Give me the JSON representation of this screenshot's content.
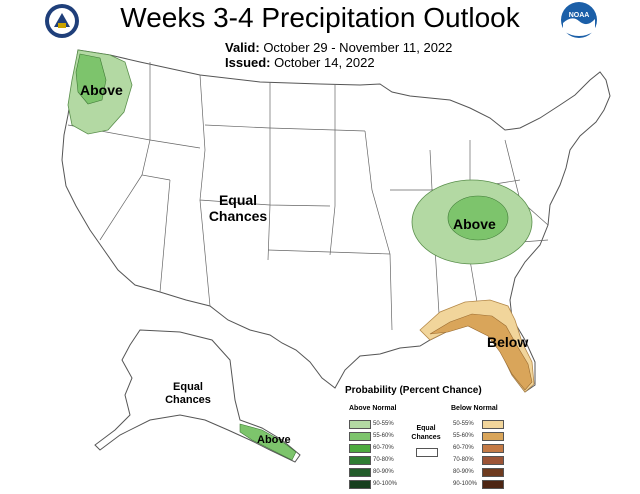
{
  "header": {
    "title": "Weeks 3-4 Precipitation Outlook",
    "valid_label": "Valid:",
    "valid_value": "October 29 - November 11, 2022",
    "issued_label": "Issued:",
    "issued_value": "October 14, 2022"
  },
  "logos": {
    "left": "department-of-commerce-seal",
    "right": "noaa-logo",
    "right_text": "NOAA"
  },
  "map_labels": {
    "northwest": "Above",
    "central": [
      "Equal",
      "Chances"
    ],
    "ohio_valley": "Above",
    "southeast": "Below",
    "alaska_central": [
      "Equal",
      "Chances"
    ],
    "alaska_southeast": "Above"
  },
  "legend": {
    "title": "Probability (Percent Chance)",
    "above_header": "Above Normal",
    "below_header": "Below Normal",
    "equal_label": [
      "Equal",
      "Chances"
    ],
    "ranges": [
      "50-55%",
      "55-60%",
      "60-70%",
      "70-80%",
      "80-90%",
      "90-100%"
    ],
    "above_colors": [
      "#b3d9a3",
      "#7dc46c",
      "#4daa3f",
      "#2f7d32",
      "#235c2a",
      "#173f1e"
    ],
    "below_colors": [
      "#f1d59b",
      "#d9a55a",
      "#c47a45",
      "#9c5436",
      "#6e3b1f",
      "#4d2513"
    ],
    "equal_color": "#ffffff"
  }
}
